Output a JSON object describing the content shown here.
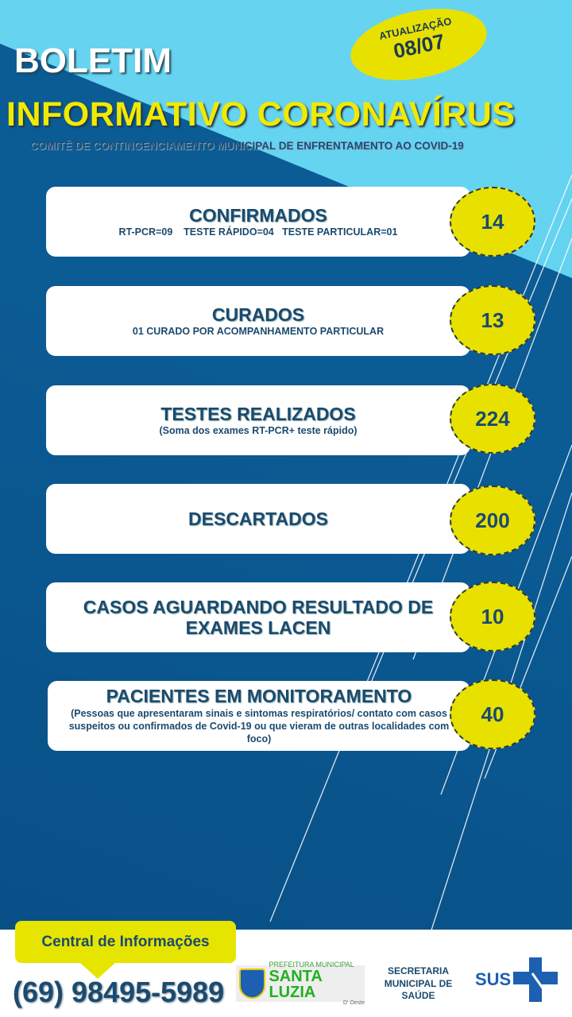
{
  "header": {
    "title_line1": "BOLETIM",
    "title_line2": "INFORMATIVO  CORONAVÍRUS",
    "subtitle": "COMITÊ DE CONTINGENCIAMENTO MUNICIPAL DE ENFRENTAMENTO AO COVID-19",
    "update_label": "ATUALIZAÇÃO",
    "update_date": "08/07"
  },
  "cards": [
    {
      "title": "CONFIRMADOS",
      "detail": "RT-PCR=09    TESTE RÁPIDO=04   TESTE PARTICULAR=01",
      "value": "14"
    },
    {
      "title": "CURADOS",
      "detail": "01 CURADO POR ACOMPANHAMENTO PARTICULAR",
      "value": "13"
    },
    {
      "title": "TESTES REALIZADOS",
      "detail": "(Soma dos exames RT-PCR+ teste rápido)",
      "value": "224"
    },
    {
      "title": "DESCARTADOS",
      "detail": "",
      "value": "200"
    },
    {
      "title": "CASOS AGUARDANDO RESULTADO DE EXAMES LACEN",
      "detail": "",
      "value": "10"
    },
    {
      "title": "PACIENTES EM MONITORAMENTO",
      "detail": "(Pessoas que apresentaram sinais e sintomas respiratórios/ contato com casos suspeitos ou confirmados de Covid-19 ou que vieram de outras localidades com foco)",
      "value": "40"
    }
  ],
  "footer": {
    "info_label": "Central de Informações",
    "phone": "(69) 98495-5989",
    "prefeitura_line1": "PREFEITURA MUNICIPAL",
    "prefeitura_line2": "SANTA LUZIA",
    "prefeitura_line3": "D' Oeste",
    "secretaria": "SECRETARIA MUNICIPAL DE SAÚDE",
    "sus": "SUS"
  },
  "colors": {
    "dark_blue": "#0b5b94",
    "light_blue": "#62d2ef",
    "yellow": "#e8e100",
    "navy_text": "#1b4a6e"
  }
}
